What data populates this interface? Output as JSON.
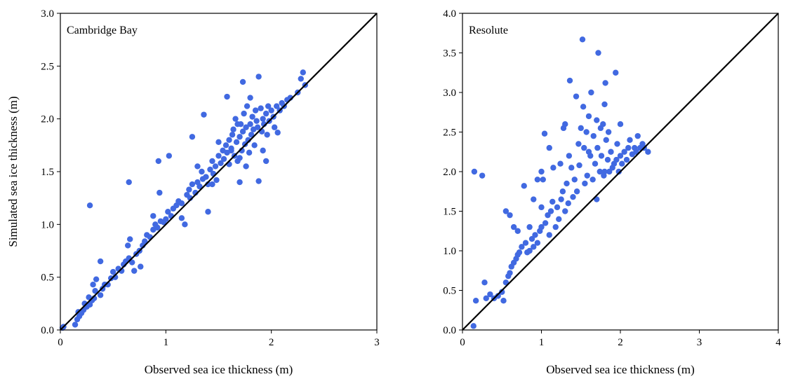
{
  "colors": {
    "points": "#4169e1",
    "identity_line": "#000000",
    "axes": "#000000"
  },
  "chart_data": [
    {
      "type": "scatter",
      "annotation": "Cambridge Bay",
      "xlabel": "Observed sea ice thickness (m)",
      "ylabel": "Simulated sea ice thickness (m)",
      "xlim": [
        0,
        3
      ],
      "ylim": [
        0,
        3
      ],
      "xticks": [
        "0",
        "1",
        "2",
        "3"
      ],
      "yticks": [
        "0.0",
        "0.5",
        "1.0",
        "1.5",
        "2.0",
        "2.5",
        "3.0"
      ],
      "grid": false,
      "legend": "none",
      "reference_line": "y = x",
      "points": [
        [
          0.02,
          0.02
        ],
        [
          0.03,
          0.03
        ],
        [
          0.14,
          0.05
        ],
        [
          0.16,
          0.1
        ],
        [
          0.18,
          0.13
        ],
        [
          0.2,
          0.16
        ],
        [
          0.17,
          0.17
        ],
        [
          0.22,
          0.19
        ],
        [
          0.25,
          0.22
        ],
        [
          0.23,
          0.25
        ],
        [
          0.28,
          0.24
        ],
        [
          0.3,
          0.28
        ],
        [
          0.27,
          0.31
        ],
        [
          0.32,
          0.3
        ],
        [
          0.33,
          0.37
        ],
        [
          0.31,
          0.43
        ],
        [
          0.34,
          0.48
        ],
        [
          0.38,
          0.33
        ],
        [
          0.4,
          0.39
        ],
        [
          0.42,
          0.43
        ],
        [
          0.38,
          0.65
        ],
        [
          0.28,
          1.18
        ],
        [
          0.45,
          0.43
        ],
        [
          0.48,
          0.49
        ],
        [
          0.5,
          0.55
        ],
        [
          0.52,
          0.5
        ],
        [
          0.55,
          0.58
        ],
        [
          0.58,
          0.56
        ],
        [
          0.6,
          0.62
        ],
        [
          0.62,
          0.65
        ],
        [
          0.65,
          0.68
        ],
        [
          0.64,
          0.8
        ],
        [
          0.66,
          0.86
        ],
        [
          0.65,
          1.4
        ],
        [
          0.68,
          0.64
        ],
        [
          0.7,
          0.56
        ],
        [
          0.72,
          0.72
        ],
        [
          0.75,
          0.75
        ],
        [
          0.78,
          0.8
        ],
        [
          0.76,
          0.6
        ],
        [
          0.8,
          0.84
        ],
        [
          0.82,
          0.9
        ],
        [
          0.85,
          0.88
        ],
        [
          0.88,
          0.95
        ],
        [
          0.9,
          1.0
        ],
        [
          0.88,
          1.08
        ],
        [
          0.92,
          0.97
        ],
        [
          0.95,
          1.03
        ],
        [
          0.98,
          1.02
        ],
        [
          0.94,
          1.3
        ],
        [
          0.93,
          1.6
        ],
        [
          1.0,
          1.05
        ],
        [
          1.02,
          1.12
        ],
        [
          1.03,
          1.65
        ],
        [
          1.05,
          1.08
        ],
        [
          1.07,
          1.15
        ],
        [
          1.1,
          1.18
        ],
        [
          1.12,
          1.22
        ],
        [
          1.15,
          1.2
        ],
        [
          1.15,
          1.06
        ],
        [
          1.18,
          1.0
        ],
        [
          1.2,
          1.28
        ],
        [
          1.22,
          1.33
        ],
        [
          1.23,
          1.25
        ],
        [
          1.25,
          1.38
        ],
        [
          1.28,
          1.3
        ],
        [
          1.3,
          1.4
        ],
        [
          1.32,
          1.36
        ],
        [
          1.34,
          1.5
        ],
        [
          1.35,
          1.43
        ],
        [
          1.38,
          1.45
        ],
        [
          1.4,
          1.38
        ],
        [
          1.4,
          1.12
        ],
        [
          1.42,
          1.52
        ],
        [
          1.44,
          1.6
        ],
        [
          1.45,
          1.48
        ],
        [
          1.47,
          1.55
        ],
        [
          1.48,
          1.42
        ],
        [
          1.5,
          1.65
        ],
        [
          1.52,
          1.58
        ],
        [
          1.54,
          1.7
        ],
        [
          1.55,
          1.62
        ],
        [
          1.57,
          1.75
        ],
        [
          1.58,
          1.68
        ],
        [
          1.6,
          1.8
        ],
        [
          1.6,
          1.57
        ],
        [
          1.62,
          1.72
        ],
        [
          1.63,
          1.85
        ],
        [
          1.64,
          1.9
        ],
        [
          1.65,
          1.65
        ],
        [
          1.66,
          2.0
        ],
        [
          1.67,
          1.78
        ],
        [
          1.68,
          1.6
        ],
        [
          1.7,
          1.83
        ],
        [
          1.7,
          1.4
        ],
        [
          1.71,
          1.95
        ],
        [
          1.72,
          1.7
        ],
        [
          1.73,
          1.88
        ],
        [
          1.74,
          2.05
        ],
        [
          1.75,
          1.76
        ],
        [
          1.76,
          1.92
        ],
        [
          1.77,
          2.12
        ],
        [
          1.78,
          1.8
        ],
        [
          1.79,
          1.68
        ],
        [
          1.8,
          1.95
        ],
        [
          1.81,
          1.85
        ],
        [
          1.82,
          2.02
        ],
        [
          1.83,
          1.9
        ],
        [
          1.84,
          1.75
        ],
        [
          1.85,
          2.08
        ],
        [
          1.86,
          1.98
        ],
        [
          1.87,
          1.92
        ],
        [
          1.88,
          2.4
        ],
        [
          1.88,
          1.41
        ],
        [
          1.9,
          2.1
        ],
        [
          1.91,
          1.88
        ],
        [
          1.92,
          2.0
        ],
        [
          1.93,
          1.95
        ],
        [
          1.95,
          2.05
        ],
        [
          1.96,
          1.85
        ],
        [
          1.97,
          2.12
        ],
        [
          1.98,
          1.98
        ],
        [
          2.0,
          2.08
        ],
        [
          2.02,
          2.02
        ],
        [
          2.03,
          1.92
        ],
        [
          2.05,
          2.12
        ],
        [
          2.06,
          1.87
        ],
        [
          2.08,
          2.08
        ],
        [
          2.1,
          2.15
        ],
        [
          2.12,
          2.12
        ],
        [
          2.15,
          2.18
        ],
        [
          2.18,
          2.2
        ],
        [
          2.25,
          2.25
        ],
        [
          2.28,
          2.38
        ],
        [
          2.3,
          2.44
        ],
        [
          2.32,
          2.32
        ],
        [
          1.25,
          1.83
        ],
        [
          1.36,
          2.04
        ],
        [
          1.58,
          2.21
        ],
        [
          1.73,
          2.35
        ],
        [
          1.8,
          2.2
        ],
        [
          1.62,
          1.7
        ],
        [
          1.7,
          1.63
        ],
        [
          1.76,
          1.55
        ],
        [
          1.92,
          1.7
        ],
        [
          1.95,
          1.6
        ],
        [
          1.44,
          1.38
        ],
        [
          1.3,
          1.55
        ],
        [
          1.5,
          1.78
        ],
        [
          1.68,
          1.95
        ]
      ]
    },
    {
      "type": "scatter",
      "annotation": "Resolute",
      "xlabel": "Observed sea ice thickness (m)",
      "ylabel": "",
      "xlim": [
        0,
        4
      ],
      "ylim": [
        0,
        4
      ],
      "xticks": [
        "0",
        "1",
        "2",
        "3",
        "4"
      ],
      "yticks": [
        "0.0",
        "0.5",
        "1.0",
        "1.5",
        "2.0",
        "2.5",
        "3.0",
        "3.5",
        "4.0"
      ],
      "grid": false,
      "legend": "none",
      "reference_line": "y = x",
      "points": [
        [
          0.14,
          0.05
        ],
        [
          0.17,
          0.37
        ],
        [
          0.15,
          2.0
        ],
        [
          0.25,
          1.95
        ],
        [
          0.28,
          0.6
        ],
        [
          0.3,
          0.4
        ],
        [
          0.35,
          0.45
        ],
        [
          0.4,
          0.4
        ],
        [
          0.45,
          0.43
        ],
        [
          0.5,
          0.48
        ],
        [
          0.52,
          0.37
        ],
        [
          0.55,
          0.6
        ],
        [
          0.58,
          0.68
        ],
        [
          0.6,
          0.72
        ],
        [
          0.62,
          0.8
        ],
        [
          0.65,
          0.85
        ],
        [
          0.68,
          0.9
        ],
        [
          0.7,
          0.95
        ],
        [
          0.55,
          1.5
        ],
        [
          0.6,
          1.45
        ],
        [
          0.65,
          1.3
        ],
        [
          0.72,
          0.98
        ],
        [
          0.75,
          1.05
        ],
        [
          0.78,
          1.82
        ],
        [
          0.8,
          1.1
        ],
        [
          0.82,
          0.98
        ],
        [
          0.85,
          1.0
        ],
        [
          0.88,
          1.15
        ],
        [
          0.9,
          1.05
        ],
        [
          0.92,
          1.2
        ],
        [
          0.95,
          1.1
        ],
        [
          0.98,
          1.25
        ],
        [
          1.0,
          1.3
        ],
        [
          1.0,
          1.55
        ],
        [
          1.0,
          2.0
        ],
        [
          1.02,
          1.9
        ],
        [
          1.04,
          2.48
        ],
        [
          1.05,
          1.35
        ],
        [
          1.08,
          1.45
        ],
        [
          1.1,
          1.2
        ],
        [
          1.12,
          1.5
        ],
        [
          1.14,
          1.62
        ],
        [
          1.15,
          2.05
        ],
        [
          1.18,
          1.3
        ],
        [
          1.2,
          1.55
        ],
        [
          1.22,
          1.4
        ],
        [
          1.24,
          2.1
        ],
        [
          1.25,
          1.65
        ],
        [
          1.27,
          1.75
        ],
        [
          1.28,
          2.55
        ],
        [
          1.3,
          1.5
        ],
        [
          1.32,
          1.85
        ],
        [
          1.34,
          1.6
        ],
        [
          1.35,
          2.2
        ],
        [
          1.36,
          3.15
        ],
        [
          1.38,
          2.05
        ],
        [
          1.4,
          1.68
        ],
        [
          1.42,
          1.9
        ],
        [
          1.44,
          2.95
        ],
        [
          1.45,
          1.75
        ],
        [
          1.47,
          2.35
        ],
        [
          1.48,
          2.08
        ],
        [
          1.5,
          2.55
        ],
        [
          1.52,
          3.67
        ],
        [
          1.53,
          2.82
        ],
        [
          1.54,
          2.3
        ],
        [
          1.55,
          1.85
        ],
        [
          1.57,
          2.5
        ],
        [
          1.58,
          1.95
        ],
        [
          1.6,
          2.7
        ],
        [
          1.62,
          2.2
        ],
        [
          1.63,
          3.0
        ],
        [
          1.65,
          1.9
        ],
        [
          1.66,
          2.45
        ],
        [
          1.68,
          2.1
        ],
        [
          1.7,
          2.65
        ],
        [
          1.71,
          2.3
        ],
        [
          1.72,
          3.5
        ],
        [
          1.74,
          2.0
        ],
        [
          1.75,
          2.55
        ],
        [
          1.76,
          2.2
        ],
        [
          1.78,
          2.6
        ],
        [
          1.79,
          1.95
        ],
        [
          1.8,
          2.85
        ],
        [
          1.81,
          3.12
        ],
        [
          1.82,
          2.4
        ],
        [
          1.84,
          2.15
        ],
        [
          1.85,
          2.5
        ],
        [
          1.86,
          2.0
        ],
        [
          1.88,
          2.25
        ],
        [
          1.9,
          2.05
        ],
        [
          1.92,
          2.1
        ],
        [
          1.94,
          3.25
        ],
        [
          1.95,
          2.15
        ],
        [
          1.96,
          2.35
        ],
        [
          1.98,
          2.0
        ],
        [
          2.0,
          2.2
        ],
        [
          2.0,
          2.6
        ],
        [
          2.02,
          2.1
        ],
        [
          2.05,
          2.25
        ],
        [
          2.08,
          2.15
        ],
        [
          2.1,
          2.3
        ],
        [
          2.12,
          2.4
        ],
        [
          2.15,
          2.22
        ],
        [
          2.18,
          2.3
        ],
        [
          2.2,
          2.25
        ],
        [
          2.22,
          2.45
        ],
        [
          2.25,
          2.3
        ],
        [
          2.28,
          2.35
        ],
        [
          2.3,
          2.3
        ],
        [
          2.35,
          2.25
        ],
        [
          1.1,
          2.3
        ],
        [
          1.3,
          2.6
        ],
        [
          0.95,
          1.9
        ],
        [
          0.85,
          1.3
        ],
        [
          0.7,
          1.25
        ],
        [
          0.9,
          1.65
        ],
        [
          1.6,
          2.25
        ],
        [
          1.7,
          1.65
        ],
        [
          1.8,
          2.0
        ]
      ]
    }
  ]
}
